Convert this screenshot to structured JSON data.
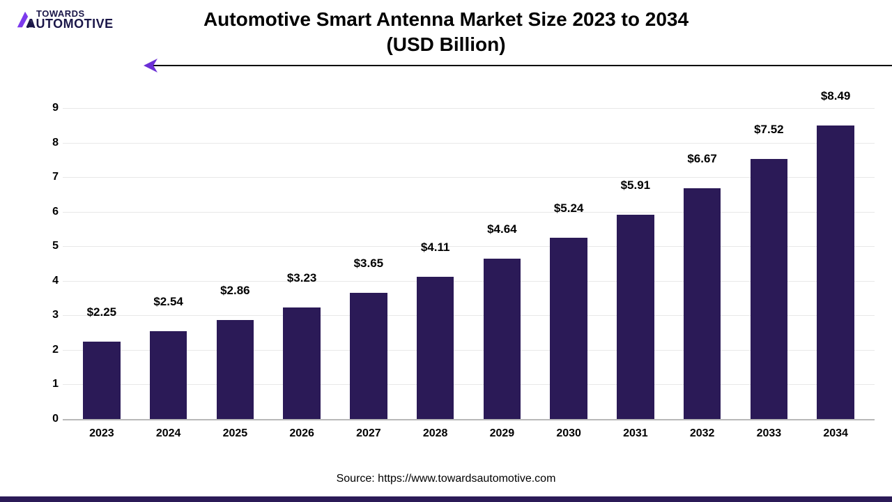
{
  "logo": {
    "line1": "TOWARDS",
    "line2": "AUTOMOTIVE",
    "mark_color1": "#7c3aed",
    "mark_color2": "#1a1648"
  },
  "title": {
    "line1": "Automotive Smart Antenna Market Size 2023 to 2034",
    "line2": "(USD Billion)",
    "fontsize": 28,
    "color": "#000000"
  },
  "divider": {
    "color": "#000000",
    "arrow_color": "#6b2fd6"
  },
  "chart": {
    "type": "bar",
    "categories": [
      "2023",
      "2024",
      "2025",
      "2026",
      "2027",
      "2028",
      "2029",
      "2030",
      "2031",
      "2032",
      "2033",
      "2034"
    ],
    "values": [
      2.25,
      2.54,
      2.86,
      3.23,
      3.65,
      4.11,
      4.64,
      5.24,
      5.91,
      6.67,
      7.52,
      8.49
    ],
    "value_labels": [
      "$2.25",
      "$2.54",
      "$2.86",
      "$3.23",
      "$3.65",
      "$4.11",
      "$4.64",
      "$5.24",
      "$5.91",
      "$6.67",
      "$7.52",
      "$8.49"
    ],
    "ylim": [
      0,
      9
    ],
    "ytick_step": 1,
    "yticks": [
      "0",
      "1",
      "2",
      "3",
      "4",
      "5",
      "6",
      "7",
      "8",
      "9"
    ],
    "bar_color": "#2b1a57",
    "bar_width_pct": 56,
    "grid_color": "#e8e8e8",
    "axis_color": "#b8b8b8",
    "tick_fontsize": 16,
    "value_label_fontsize": 17,
    "x_label_fontsize": 16,
    "background_color": "#ffffff"
  },
  "source": {
    "text": "Source: https://www.towardsautomotive.com",
    "fontsize": 16,
    "color": "#000000"
  },
  "footer_bar_color": "#2b1a57"
}
